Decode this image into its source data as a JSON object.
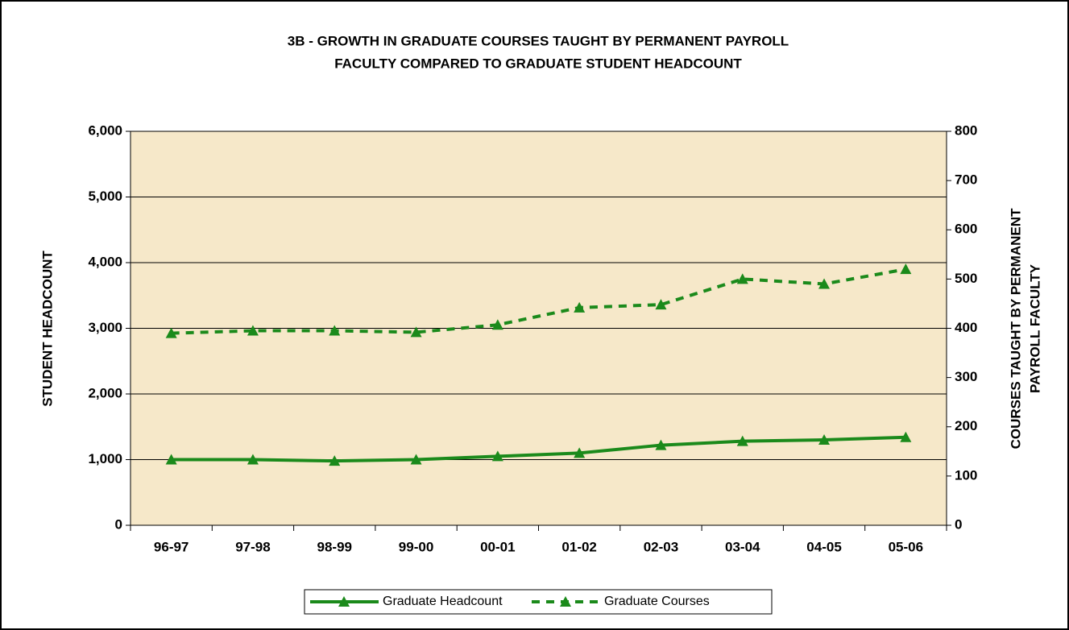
{
  "chart_data": {
    "type": "line",
    "title": [
      "3B - GROWTH IN GRADUATE COURSES TAUGHT BY PERMANENT PAYROLL",
      "FACULTY COMPARED TO GRADUATE STUDENT HEADCOUNT"
    ],
    "ylabel": "STUDENT HEADCOUNT",
    "y2label": [
      "COURSES TAUGHT BY PERMANENT",
      "PAYROLL FACULTY"
    ],
    "categories": [
      "96-97",
      "97-98",
      "98-99",
      "99-00",
      "00-01",
      "01-02",
      "02-03",
      "03-04",
      "04-05",
      "05-06"
    ],
    "series": [
      {
        "name": "Graduate Headcount",
        "color": "#1b8a1b",
        "dash": false,
        "axis": "y",
        "values": [
          1000,
          1000,
          980,
          1000,
          1050,
          1100,
          1220,
          1280,
          1300,
          1340
        ]
      },
      {
        "name": "Graduate Courses",
        "color": "#1b8a1b",
        "dash": true,
        "axis": "y2",
        "values": [
          390,
          395,
          395,
          392,
          407,
          442,
          448,
          500,
          490,
          520
        ]
      }
    ],
    "ylim": [
      0,
      6000
    ],
    "yticks": [
      {
        "value": 0,
        "label": "0"
      },
      {
        "value": 1000,
        "label": "1,000"
      },
      {
        "value": 2000,
        "label": "2,000"
      },
      {
        "value": 3000,
        "label": "3,000"
      },
      {
        "value": 4000,
        "label": "4,000"
      },
      {
        "value": 5000,
        "label": "5,000"
      },
      {
        "value": 6000,
        "label": "6,000"
      }
    ],
    "y2lim": [
      0,
      800
    ],
    "y2ticks": [
      0,
      100,
      200,
      300,
      400,
      500,
      600,
      700,
      800
    ],
    "grid": true
  }
}
